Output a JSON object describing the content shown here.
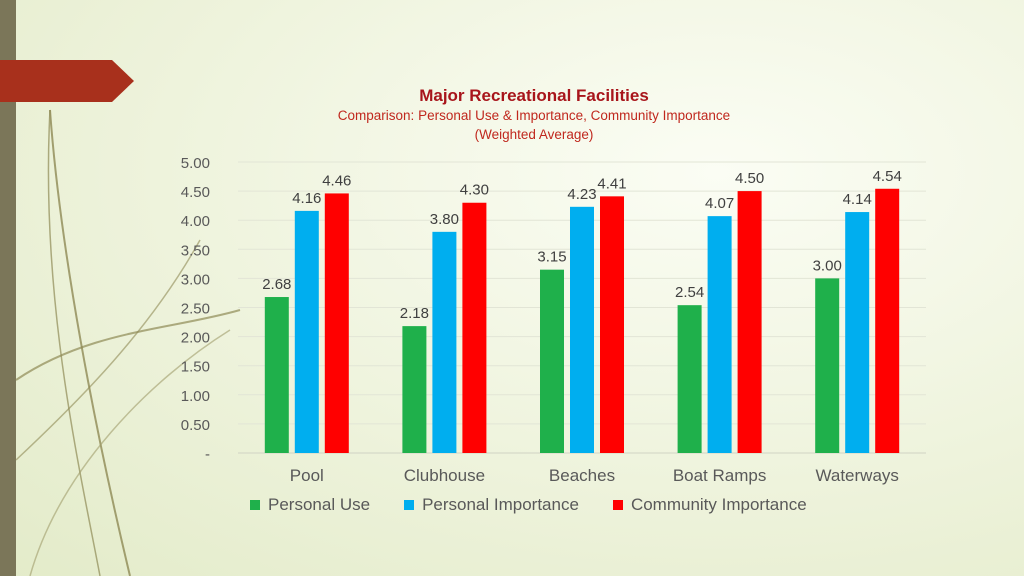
{
  "chart_data": {
    "type": "bar",
    "title": "Major Recreational Facilities",
    "subtitle": "Comparison: Personal Use & Importance, Community Importance",
    "subtitle2": "(Weighted Average)",
    "categories": [
      "Pool",
      "Clubhouse",
      "Beaches",
      "Boat Ramps",
      "Waterways"
    ],
    "series": [
      {
        "name": "Personal Use",
        "color": "#1fb04b",
        "values": [
          2.68,
          2.18,
          3.15,
          2.54,
          3.0
        ],
        "labels": [
          "2.68",
          "2.18",
          "3.15",
          "2.54",
          "3.00"
        ]
      },
      {
        "name": "Personal Importance",
        "color": "#00aeef",
        "values": [
          4.16,
          3.8,
          4.23,
          4.07,
          4.14
        ],
        "labels": [
          "4.16",
          "3.80",
          "4.23",
          "4.07",
          "4.14"
        ]
      },
      {
        "name": "Community Importance",
        "color": "#ff0000",
        "values": [
          4.46,
          4.3,
          4.41,
          4.5,
          4.54
        ],
        "labels": [
          "4.46",
          "4.30",
          "4.41",
          "4.50",
          "4.54"
        ]
      }
    ],
    "yticks": [
      "-",
      "0.50",
      "1.00",
      "1.50",
      "2.00",
      "2.50",
      "3.00",
      "3.50",
      "4.00",
      "4.50",
      "5.00"
    ],
    "ylim": [
      0,
      5
    ],
    "xlabel": "",
    "ylabel": "",
    "grid": true,
    "legend_position": "bottom"
  }
}
